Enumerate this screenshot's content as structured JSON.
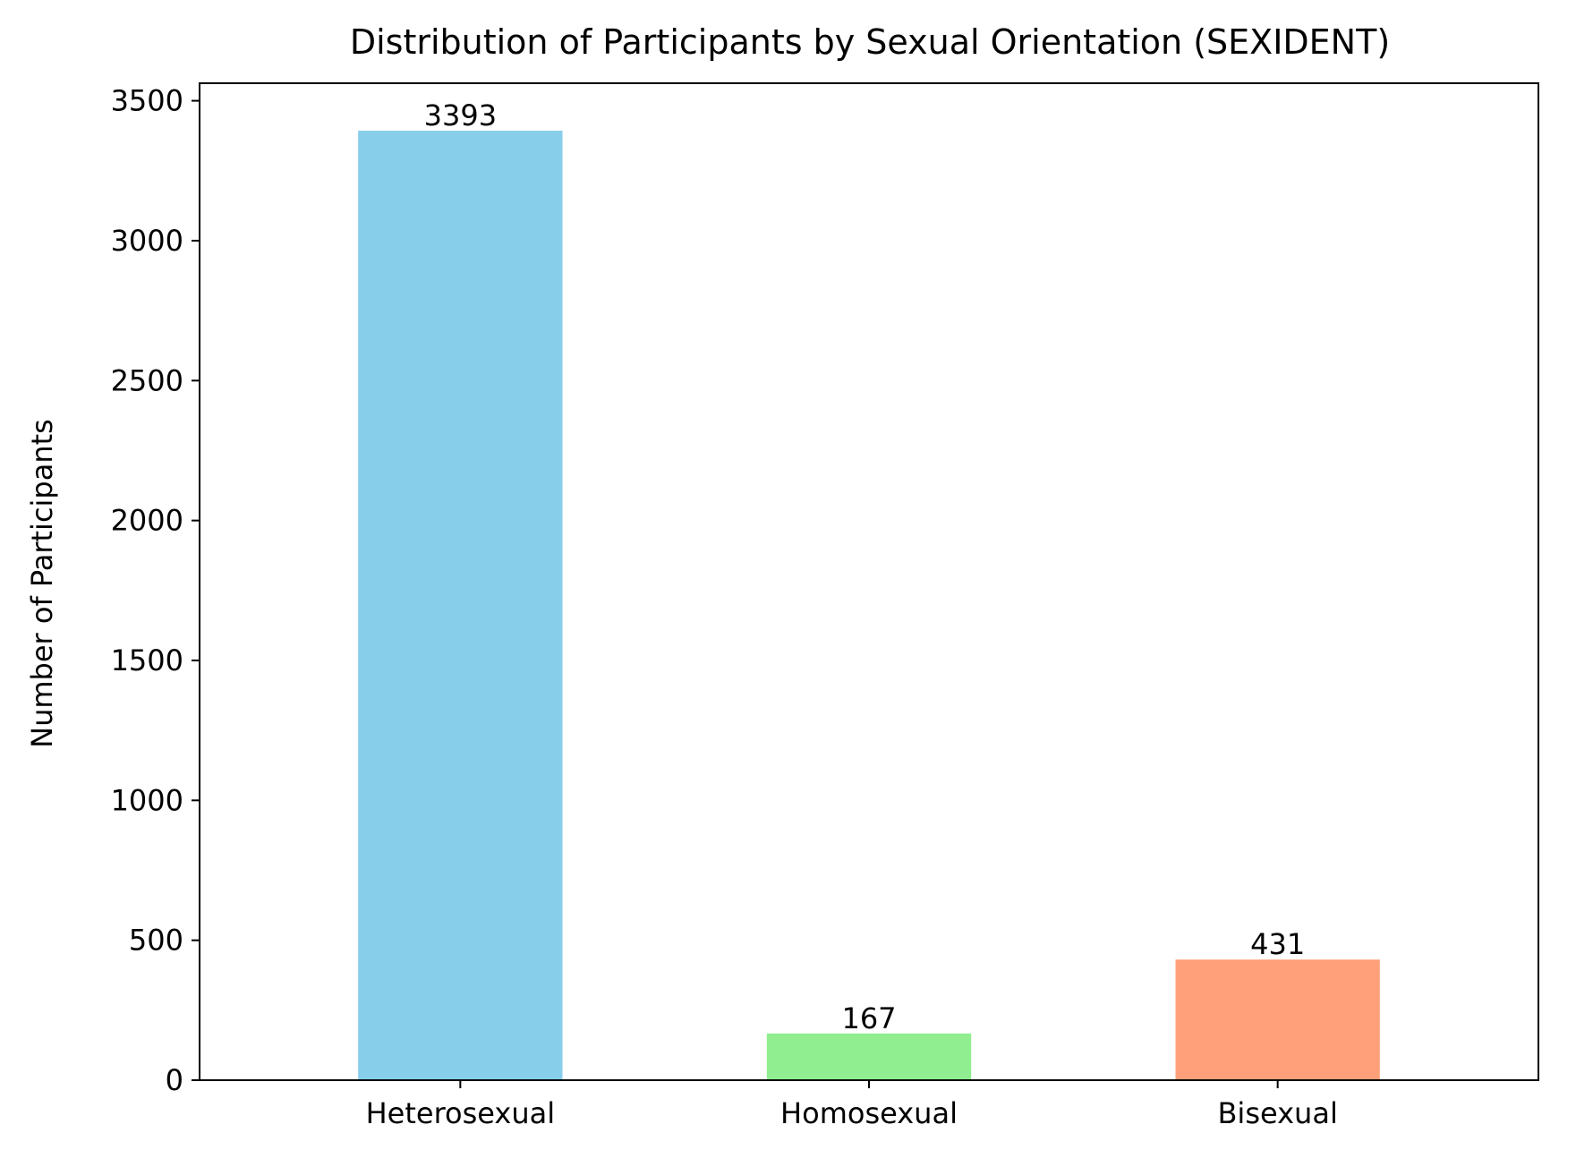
{
  "chart_data": {
    "type": "bar",
    "title": "Distribution of Participants by Sexual Orientation (SEXIDENT)",
    "xlabel": "",
    "ylabel": "Number of Participants",
    "categories": [
      "Heterosexual",
      "Homosexual",
      "Bisexual"
    ],
    "values": [
      3393,
      167,
      431
    ],
    "data_labels": [
      "3393",
      "167",
      "431"
    ],
    "colors": [
      "#87ceeb",
      "#90ee90",
      "#ffa07a"
    ],
    "ylim": [
      0,
      3562.65
    ],
    "yticks": [
      0,
      500,
      1000,
      1500,
      2000,
      2500,
      3000,
      3500
    ],
    "ytick_labels": [
      "0",
      "500",
      "1000",
      "1500",
      "2000",
      "2500",
      "3000",
      "3500"
    ],
    "grid": false,
    "legend": false
  }
}
